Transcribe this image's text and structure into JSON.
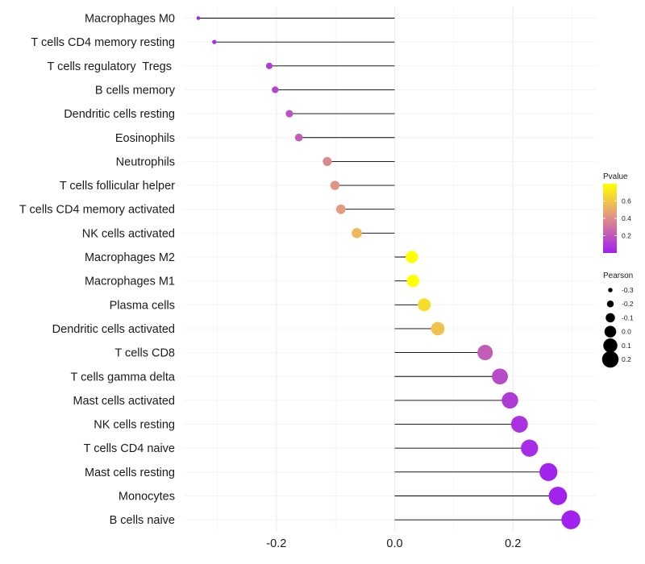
{
  "chart_data": {
    "type": "lollipop",
    "categories": [
      "Macrophages M0",
      "T cells CD4 memory resting",
      "T cells regulatory  Tregs ",
      "B cells memory",
      "Dendritic cells resting",
      "Eosinophils",
      "Neutrophils",
      "T cells follicular helper",
      "T cells CD4 memory activated",
      "NK cells activated",
      "Macrophages M2",
      "Macrophages M1",
      "Plasma cells",
      "Dendritic cells activated",
      "T cells CD8",
      "T cells gamma delta",
      "Mast cells activated",
      "NK cells resting",
      "T cells CD4 naive",
      "Mast cells resting",
      "Monocytes",
      "B cells naive"
    ],
    "pearson": [
      -0.332,
      -0.305,
      -0.212,
      -0.202,
      -0.178,
      -0.162,
      -0.114,
      -0.101,
      -0.091,
      -0.064,
      0.029,
      0.031,
      0.05,
      0.073,
      0.153,
      0.178,
      0.195,
      0.211,
      0.228,
      0.26,
      0.276,
      0.298
    ],
    "pvalue": [
      0.02,
      0.04,
      0.1,
      0.12,
      0.16,
      0.2,
      0.34,
      0.38,
      0.4,
      0.52,
      0.82,
      0.81,
      0.66,
      0.56,
      0.2,
      0.14,
      0.09,
      0.06,
      0.04,
      0.01,
      0.01,
      0.005
    ],
    "xlim": [
      -0.33,
      0.3
    ],
    "x_ticks": [
      -0.2,
      0.0,
      0.2
    ],
    "x_tick_labels": [
      "-0.2",
      "0.0",
      "0.2"
    ],
    "grid": true,
    "colorbar": {
      "title": "Pvalue",
      "range": [
        0.0,
        0.8
      ],
      "ticks": [
        0.2,
        0.4,
        0.6
      ],
      "tick_labels": [
        "0.2",
        "0.4",
        "0.6"
      ],
      "low_color": "#a020f0",
      "mid_color": "#e49a7e",
      "high_color": "#ffff00"
    },
    "size_legend": {
      "title": "Pearson",
      "values": [
        -0.3,
        -0.2,
        -0.1,
        0.0,
        0.1,
        0.2
      ],
      "labels": [
        "-0.3",
        "-0.2",
        "-0.1",
        "0.0",
        "0.1",
        "0.2"
      ]
    },
    "line_color": "#000000"
  }
}
